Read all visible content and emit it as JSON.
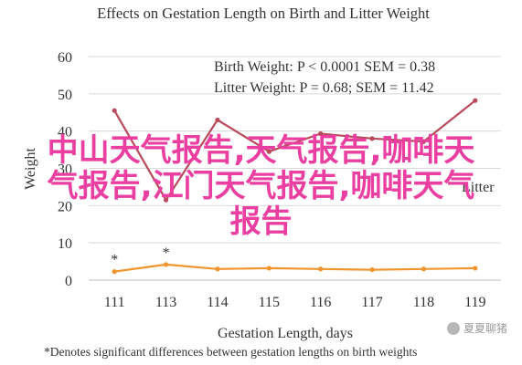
{
  "chart_data": {
    "type": "line",
    "title": "Effects on Gestation Length on Birth and Litter Weight",
    "xlabel": "Gestation Length, days",
    "ylabel": "Weight",
    "categories": [
      "111",
      "113",
      "114",
      "115",
      "116",
      "117",
      "118",
      "119"
    ],
    "ylim": [
      0,
      60
    ],
    "yticks": [
      0,
      10,
      20,
      30,
      40,
      50,
      60
    ],
    "grid": true,
    "series": [
      {
        "name": "Litter",
        "color": "#b84a5c",
        "values": [
          45.5,
          21.5,
          43.0,
          34.5,
          39.3,
          38.0,
          37.2,
          48.2
        ]
      },
      {
        "name": "Birth",
        "color": "#f0952d",
        "values": [
          2.3,
          4.2,
          3.0,
          3.2,
          3.0,
          2.8,
          3.0,
          3.2
        ]
      }
    ],
    "annotations": {
      "stats_line1": "Birth Weight: P < 0.0001 SEM = 0.38",
      "stats_line2": "Litter Weight: P = 0.68; SEM = 11.42",
      "asterisks": [
        {
          "category": "111",
          "text": "*"
        },
        {
          "category": "113",
          "text": "*"
        }
      ],
      "series_label_litter": "Litter"
    },
    "footnote": "*Denotes significant differences between gestation lengths on birth weights"
  },
  "overlay": {
    "line1": "中山天气报告,天气报告,咖啡天",
    "line2": "气报告,江门天气报告,咖啡天气",
    "line3": "报告"
  },
  "watermark": "夏夏聊猪"
}
